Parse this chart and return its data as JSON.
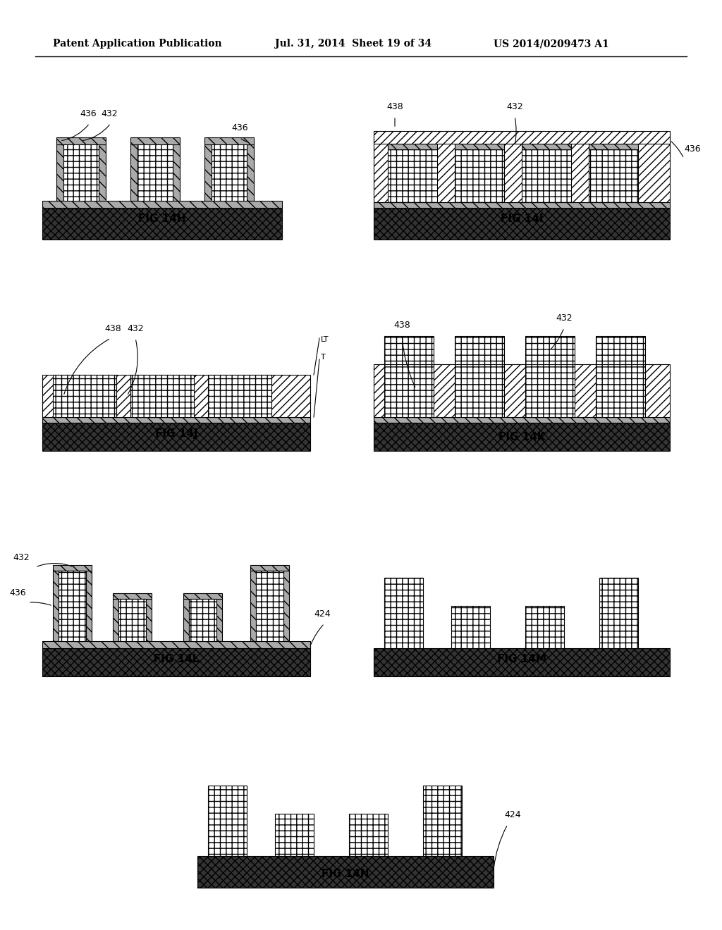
{
  "header_left": "Patent Application Publication",
  "header_mid": "Jul. 31, 2014  Sheet 19 of 34",
  "header_right": "US 2014/0209473 A1",
  "background_color": "#ffffff",
  "figures": [
    {
      "label": "FIG 14H",
      "col": 0,
      "row": 0
    },
    {
      "label": "FIG 14I",
      "col": 1,
      "row": 0
    },
    {
      "label": "FIG 14J",
      "col": 0,
      "row": 1
    },
    {
      "label": "FIG 14K",
      "col": 1,
      "row": 1
    },
    {
      "label": "FIG 14L",
      "col": 0,
      "row": 2
    },
    {
      "label": "FIG 14M",
      "col": 1,
      "row": 2
    },
    {
      "label": "FIG 14N",
      "col": 0.5,
      "row": 3
    }
  ]
}
